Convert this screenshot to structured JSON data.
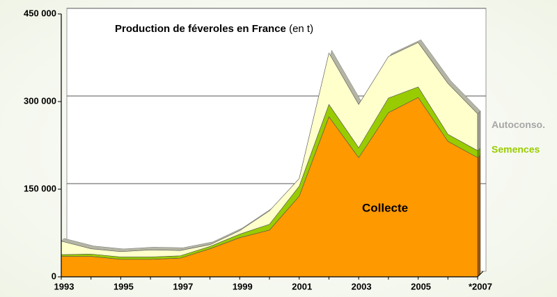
{
  "chart_data": {
    "type": "stacked_area",
    "title": "Production de féveroles en France",
    "unit": "(en t)",
    "categories": [
      "1993",
      null,
      "1995",
      null,
      "1997",
      null,
      "1999",
      null,
      "2001",
      null,
      "2003",
      null,
      "2005",
      null,
      "*2007"
    ],
    "series": [
      {
        "name": "Collecte",
        "color": "#ff9900",
        "values": [
          35000,
          35000,
          30000,
          30000,
          32000,
          48000,
          67000,
          80000,
          138000,
          274000,
          204000,
          281000,
          307000,
          232000,
          204000
        ]
      },
      {
        "name": "Semences",
        "color": "#99cc00",
        "values": [
          3000,
          4000,
          4000,
          4000,
          4000,
          4000,
          6000,
          10000,
          17000,
          21000,
          17000,
          25000,
          18000,
          12000,
          12000
        ]
      },
      {
        "name": "Autoconso.",
        "color": "#ffffcc",
        "values": [
          23000,
          9000,
          9000,
          12000,
          9000,
          3000,
          6000,
          23000,
          13000,
          88000,
          74000,
          71000,
          76000,
          87000,
          63000
        ]
      }
    ],
    "ylim": [
      0,
      450000
    ],
    "yticks": [
      0,
      {
        "value": 150000,
        "label": "150 000"
      },
      {
        "value": 300000,
        "label": "300 000"
      },
      {
        "value": 450000,
        "label": "450 000"
      }
    ],
    "grid": true
  }
}
